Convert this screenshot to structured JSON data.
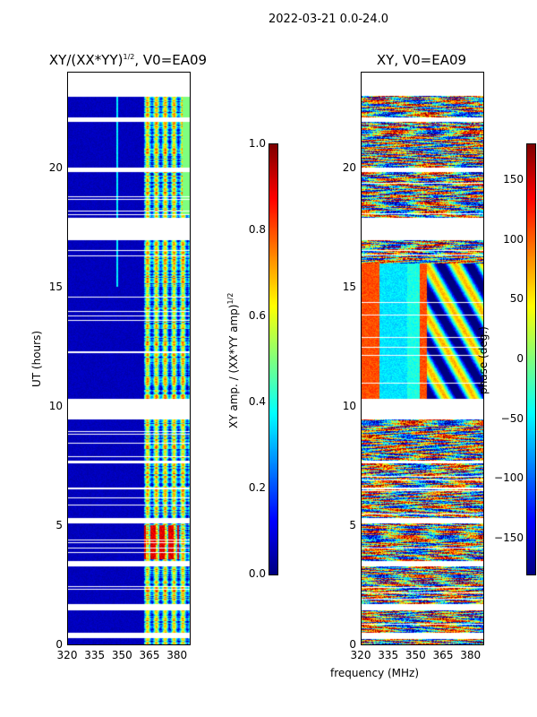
{
  "suptitle": "2022-03-21 0.0-24.0",
  "xlabel": "frequency (MHz)",
  "chart_data": [
    {
      "type": "heatmap",
      "title": "XY/(XX*YY)^1/2, V0=EA09",
      "title_main": "XY/(XX*YY)",
      "title_sup": "1/2",
      "title_tail": ", V0=EA09",
      "xlabel": "frequency (MHz)",
      "ylabel": "UT (hours)",
      "xlim": [
        320,
        387
      ],
      "ylim": [
        0,
        24
      ],
      "xticks": [
        "320",
        "335",
        "350",
        "365",
        "380"
      ],
      "yticks": [
        "0",
        "5",
        "10",
        "15",
        "20"
      ],
      "colormap": "jet",
      "clim": [
        0.0,
        1.0
      ],
      "colorbar_label": "XY amp. / (XX*YY amp)",
      "colorbar_label_sup": "1/2",
      "colorbar_ticks": [
        "0.0",
        "0.2",
        "0.4",
        "0.6",
        "0.8",
        "1.0"
      ],
      "typical_values": {
        "below_362MHz": 0.05,
        "362_to_385MHz": 0.45,
        "bright_patch_3.6_to_5.0h": 0.85
      },
      "flagged_hours": [
        [
          23.0,
          24.0
        ],
        [
          21.9,
          22.1
        ],
        [
          19.8,
          20.0
        ],
        [
          17.9,
          16.95
        ],
        [
          10.3,
          9.45
        ],
        [
          7.7,
          7.6
        ],
        [
          6.6,
          6.5
        ],
        [
          5.3,
          5.1
        ],
        [
          3.5,
          3.3
        ],
        [
          1.7,
          1.45
        ],
        [
          0.5,
          0.3
        ]
      ]
    },
    {
      "type": "heatmap",
      "title": "XY, V0=EA09",
      "xlabel": "frequency (MHz)",
      "ylabel": "",
      "xlim": [
        320,
        387
      ],
      "ylim": [
        0,
        24
      ],
      "xticks": [
        "320",
        "335",
        "350",
        "365",
        "380"
      ],
      "yticks": [
        "0",
        "5",
        "10",
        "15",
        "20"
      ],
      "colormap": "jet",
      "clim": [
        -180,
        180
      ],
      "colorbar_label": "phase (deg.)",
      "colorbar_ticks": [
        "−150",
        "−100",
        "−50",
        "0",
        "50",
        "100",
        "150"
      ],
      "colorbar_tick_values": [
        -150,
        -100,
        -50,
        0,
        50,
        100,
        150
      ],
      "flagged_hours": [
        [
          23.0,
          24.0
        ],
        [
          21.9,
          22.1
        ],
        [
          19.8,
          20.0
        ],
        [
          17.9,
          16.95
        ],
        [
          10.3,
          9.45
        ],
        [
          7.7,
          7.6
        ],
        [
          6.6,
          6.5
        ],
        [
          5.3,
          5.1
        ],
        [
          3.5,
          3.3
        ],
        [
          1.7,
          1.45
        ],
        [
          0.5,
          0.3
        ]
      ]
    }
  ]
}
